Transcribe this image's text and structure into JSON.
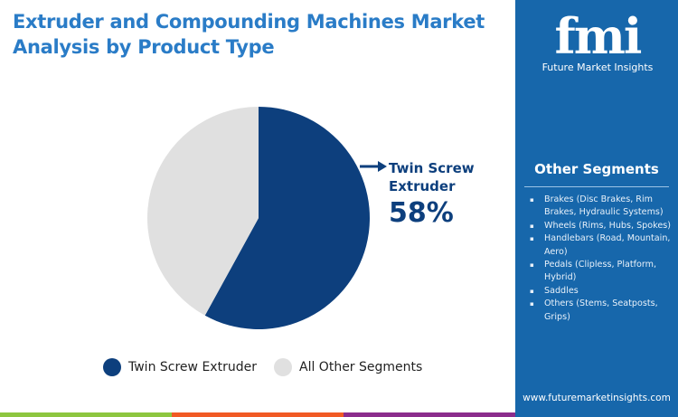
{
  "title": "Extruder and Compounding Machines Market Analysis by Product Type",
  "chart_data": {
    "type": "pie",
    "title": "Extruder and Compounding Machines Market Analysis by Product Type",
    "slices": [
      {
        "name": "Twin Screw Extruder",
        "value": 58,
        "color": "#0d3f7d"
      },
      {
        "name": "All Other Segments",
        "value": 42,
        "color": "#e0e0e0"
      }
    ],
    "callout": {
      "label": "Twin Screw Extruder",
      "value": "58%"
    },
    "legend": "bottom"
  },
  "sidebar": {
    "logo_text": "fmi",
    "logo_subtitle": "Future Market Insights",
    "other_title": "Other Segments",
    "items": [
      "Brakes (Disc Brakes, Rim Brakes, Hydraulic Systems)",
      "Wheels (Rims, Hubs, Spokes)",
      "Handlebars (Road, Mountain, Aero)",
      "Pedals (Clipless, Platform, Hybrid)",
      "Saddles",
      "Others (Stems, Seatposts, Grips)"
    ],
    "url": "www.futuremarketinsights.com",
    "bg": "#1767ab"
  },
  "footer_colors": [
    "#8dc63f",
    "#f15a24",
    "#8b2c8c"
  ]
}
